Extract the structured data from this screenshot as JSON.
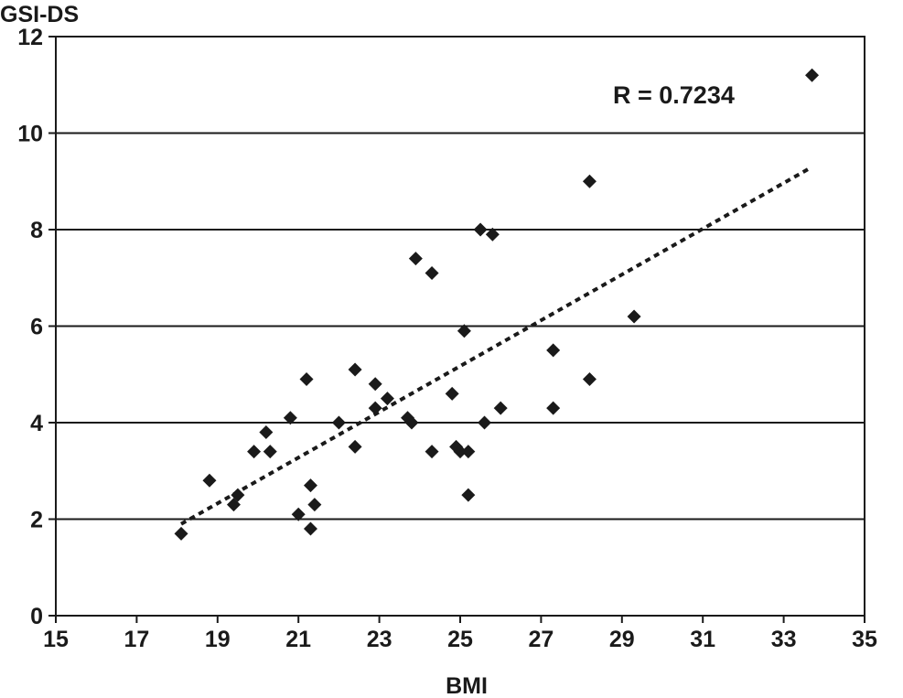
{
  "chart_data": {
    "type": "scatter",
    "ylabel": "GSI-DS",
    "xlabel": "BMI",
    "annotation": "R = 0.7234",
    "xlim": [
      15,
      35
    ],
    "ylim": [
      0,
      12
    ],
    "x_ticks": [
      15,
      17,
      19,
      21,
      23,
      25,
      27,
      29,
      31,
      33,
      35
    ],
    "y_ticks": [
      0,
      2,
      4,
      6,
      8,
      10,
      12
    ],
    "grid": "horizontal",
    "marker": "diamond",
    "colors": {
      "marker": "#1a1a1a",
      "trend": "#1a1a1a",
      "grid": "#1a1a1a"
    },
    "trendline": {
      "style": "dotted",
      "x": [
        18.1,
        33.6
      ],
      "y": [
        1.9,
        9.25
      ]
    },
    "points": [
      {
        "x": 18.1,
        "y": 1.7
      },
      {
        "x": 18.8,
        "y": 2.8
      },
      {
        "x": 19.4,
        "y": 2.3
      },
      {
        "x": 19.5,
        "y": 2.5
      },
      {
        "x": 19.9,
        "y": 3.4
      },
      {
        "x": 20.2,
        "y": 3.8
      },
      {
        "x": 20.3,
        "y": 3.4
      },
      {
        "x": 20.8,
        "y": 4.1
      },
      {
        "x": 21.0,
        "y": 2.1
      },
      {
        "x": 21.2,
        "y": 4.9
      },
      {
        "x": 21.3,
        "y": 2.7
      },
      {
        "x": 21.3,
        "y": 1.8
      },
      {
        "x": 21.4,
        "y": 2.3
      },
      {
        "x": 22.0,
        "y": 4.0
      },
      {
        "x": 22.4,
        "y": 5.1
      },
      {
        "x": 22.4,
        "y": 3.5
      },
      {
        "x": 22.9,
        "y": 4.8
      },
      {
        "x": 22.9,
        "y": 4.3
      },
      {
        "x": 23.2,
        "y": 4.5
      },
      {
        "x": 23.7,
        "y": 4.1
      },
      {
        "x": 23.8,
        "y": 4.0
      },
      {
        "x": 23.9,
        "y": 7.4
      },
      {
        "x": 24.3,
        "y": 7.1
      },
      {
        "x": 24.3,
        "y": 3.4
      },
      {
        "x": 24.8,
        "y": 4.6
      },
      {
        "x": 24.9,
        "y": 3.5
      },
      {
        "x": 25.0,
        "y": 3.4
      },
      {
        "x": 25.1,
        "y": 5.9
      },
      {
        "x": 25.2,
        "y": 3.4
      },
      {
        "x": 25.2,
        "y": 2.5
      },
      {
        "x": 25.5,
        "y": 8.0
      },
      {
        "x": 25.6,
        "y": 4.0
      },
      {
        "x": 25.8,
        "y": 7.9
      },
      {
        "x": 26.0,
        "y": 4.3
      },
      {
        "x": 27.3,
        "y": 5.5
      },
      {
        "x": 27.3,
        "y": 4.3
      },
      {
        "x": 28.2,
        "y": 9.0
      },
      {
        "x": 28.2,
        "y": 4.9
      },
      {
        "x": 29.3,
        "y": 6.2
      },
      {
        "x": 33.7,
        "y": 11.2
      }
    ]
  }
}
